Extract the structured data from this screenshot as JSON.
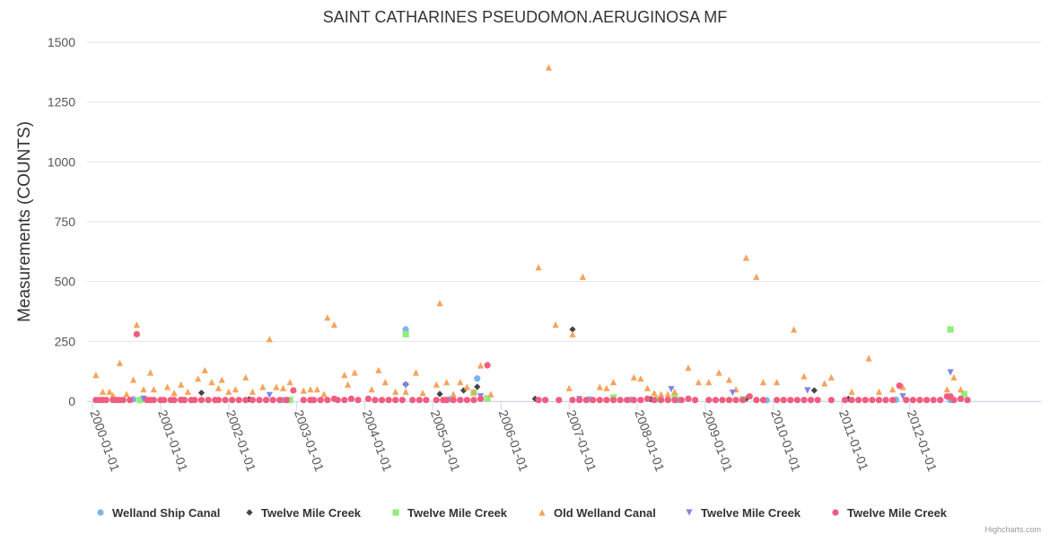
{
  "chart_data": {
    "type": "scatter",
    "title": "SAINT CATHARINES PSEUDOMON.AERUGINOSA MF",
    "xlabel": "",
    "ylabel": "Measurements (COUNTS)",
    "ylim": [
      0,
      1500
    ],
    "yticks": [
      0,
      250,
      500,
      750,
      1000,
      1250,
      1500
    ],
    "xlim": [
      1999.92,
      2013.93
    ],
    "xtick_values": [
      2000,
      2001,
      2002,
      2003,
      2004,
      2005,
      2006,
      2007,
      2008,
      2009,
      2010,
      2011,
      2012
    ],
    "xtick_labels": [
      "2000-01-01",
      "2001-01-01",
      "2002-01-01",
      "2003-01-01",
      "2004-01-01",
      "2005-01-01",
      "2006-01-01",
      "2007-01-01",
      "2008-01-01",
      "2009-01-01",
      "2010-01-01",
      "2011-01-01",
      "2012-01-01"
    ],
    "grid": "y",
    "legend_position": "bottom",
    "series": [
      {
        "name": "Welland Ship Canal",
        "color": "#7cb5ec",
        "marker": "circle",
        "x": [
          2000.6,
          2001.3,
          2002.8,
          2004.6,
          2005.25,
          2005.65,
          2007.3,
          2007.9,
          2008.6,
          2009.9,
          2011.8,
          2012.6
        ],
        "y": [
          8,
          6,
          5,
          300,
          8,
          95,
          8,
          6,
          5,
          4,
          6,
          5
        ]
      },
      {
        "name": "Twelve Mile Creek",
        "color": "#434348",
        "marker": "diamond",
        "x": [
          2001.6,
          2002.3,
          2004.6,
          2005.1,
          2005.45,
          2005.65,
          2006.5,
          2007.05,
          2008.2,
          2009.6,
          2010.6,
          2011.1
        ],
        "y": [
          35,
          8,
          70,
          30,
          45,
          60,
          10,
          300,
          8,
          10,
          45,
          10
        ]
      },
      {
        "name": "Twelve Mile Creek",
        "color": "#90ed7d",
        "marker": "square",
        "x": [
          2000.7,
          2002.9,
          2004.6,
          2005.6,
          2005.8,
          2007.65,
          2008.3,
          2008.55,
          2009.55,
          2012.6,
          2012.8
        ],
        "y": [
          5,
          5,
          280,
          35,
          12,
          15,
          8,
          20,
          8,
          300,
          30
        ]
      },
      {
        "name": "Old Welland Canal",
        "color": "#f7a35c",
        "marker": "triangle",
        "x": [
          2000.05,
          2000.15,
          2000.25,
          2000.3,
          2000.4,
          2000.5,
          2000.6,
          2000.65,
          2000.75,
          2000.85,
          2000.9,
          2001.1,
          2001.2,
          2001.3,
          2001.4,
          2001.55,
          2001.65,
          2001.75,
          2001.85,
          2001.9,
          2002.0,
          2002.1,
          2002.25,
          2002.35,
          2002.5,
          2002.6,
          2002.7,
          2002.8,
          2002.9,
          2003.1,
          2003.2,
          2003.3,
          2003.4,
          2003.45,
          2003.55,
          2003.7,
          2003.75,
          2003.85,
          2004.1,
          2004.2,
          2004.3,
          2004.45,
          2004.6,
          2004.75,
          2004.85,
          2005.05,
          2005.1,
          2005.2,
          2005.3,
          2005.4,
          2005.5,
          2005.6,
          2005.7,
          2005.85,
          2006.55,
          2006.7,
          2006.8,
          2007.0,
          2007.05,
          2007.2,
          2007.45,
          2007.55,
          2007.65,
          2007.95,
          2008.05,
          2008.15,
          2008.25,
          2008.35,
          2008.45,
          2008.55,
          2008.75,
          2008.9,
          2009.05,
          2009.2,
          2009.35,
          2009.45,
          2009.6,
          2009.75,
          2009.85,
          2010.05,
          2010.3,
          2010.45,
          2010.75,
          2010.85,
          2011.15,
          2011.4,
          2011.55,
          2011.75,
          2011.9,
          2012.55,
          2012.65,
          2012.75
        ],
        "y": [
          110,
          40,
          40,
          25,
          160,
          30,
          90,
          320,
          50,
          120,
          50,
          60,
          35,
          70,
          40,
          95,
          130,
          80,
          55,
          90,
          40,
          50,
          100,
          40,
          60,
          260,
          60,
          55,
          80,
          45,
          50,
          50,
          30,
          350,
          320,
          110,
          70,
          120,
          50,
          130,
          80,
          40,
          40,
          120,
          35,
          70,
          410,
          80,
          30,
          80,
          60,
          40,
          150,
          30,
          560,
          1395,
          320,
          55,
          280,
          520,
          60,
          55,
          80,
          100,
          95,
          55,
          35,
          30,
          30,
          40,
          140,
          80,
          80,
          120,
          90,
          50,
          600,
          520,
          80,
          80,
          300,
          105,
          75,
          100,
          40,
          180,
          40,
          50,
          60,
          50,
          100,
          50
        ]
      },
      {
        "name": "Twelve Mile Creek",
        "color": "#8085e9",
        "marker": "triangle-down",
        "x": [
          2000.75,
          2002.6,
          2004.6,
          2005.7,
          2007.15,
          2008.5,
          2009.4,
          2010.5,
          2011.9,
          2012.6
        ],
        "y": [
          10,
          25,
          65,
          20,
          8,
          50,
          35,
          45,
          20,
          120
        ]
      },
      {
        "name": "Twelve Mile Creek",
        "color": "#f15c80",
        "marker": "circle",
        "x": [
          2000.05,
          2000.1,
          2000.15,
          2000.2,
          2000.3,
          2000.35,
          2000.4,
          2000.45,
          2000.55,
          2000.65,
          2000.8,
          2000.85,
          2000.9,
          2001.0,
          2001.05,
          2001.15,
          2001.2,
          2001.3,
          2001.35,
          2001.45,
          2001.5,
          2001.6,
          2001.7,
          2001.8,
          2001.85,
          2001.95,
          2002.05,
          2002.15,
          2002.25,
          2002.35,
          2002.45,
          2002.55,
          2002.65,
          2002.75,
          2002.85,
          2002.95,
          2003.1,
          2003.2,
          2003.25,
          2003.35,
          2003.45,
          2003.55,
          2003.6,
          2003.7,
          2003.8,
          2003.9,
          2004.05,
          2004.15,
          2004.25,
          2004.35,
          2004.45,
          2004.55,
          2004.7,
          2004.8,
          2004.9,
          2005.05,
          2005.15,
          2005.2,
          2005.3,
          2005.4,
          2005.5,
          2005.6,
          2005.7,
          2005.8,
          2006.55,
          2006.65,
          2006.85,
          2007.05,
          2007.15,
          2007.25,
          2007.35,
          2007.45,
          2007.55,
          2007.65,
          2007.75,
          2007.85,
          2007.95,
          2008.05,
          2008.15,
          2008.25,
          2008.35,
          2008.45,
          2008.55,
          2008.65,
          2008.75,
          2008.85,
          2009.05,
          2009.15,
          2009.25,
          2009.35,
          2009.45,
          2009.55,
          2009.65,
          2009.75,
          2009.85,
          2010.05,
          2010.15,
          2010.25,
          2010.35,
          2010.45,
          2010.55,
          2010.65,
          2010.85,
          2011.05,
          2011.15,
          2011.25,
          2011.35,
          2011.45,
          2011.55,
          2011.65,
          2011.75,
          2011.85,
          2011.95,
          2012.05,
          2012.15,
          2012.25,
          2012.35,
          2012.45,
          2012.55,
          2012.6,
          2012.65,
          2012.75,
          2012.85
        ],
        "y": [
          5,
          5,
          5,
          5,
          5,
          5,
          5,
          5,
          5,
          280,
          5,
          5,
          5,
          5,
          5,
          5,
          5,
          5,
          5,
          5,
          5,
          5,
          5,
          5,
          5,
          5,
          5,
          5,
          5,
          5,
          5,
          5,
          5,
          5,
          5,
          45,
          5,
          5,
          5,
          5,
          5,
          10,
          5,
          5,
          10,
          5,
          10,
          5,
          5,
          5,
          5,
          5,
          5,
          5,
          5,
          5,
          5,
          5,
          5,
          5,
          5,
          5,
          10,
          150,
          5,
          5,
          5,
          5,
          5,
          5,
          5,
          5,
          5,
          5,
          5,
          5,
          5,
          5,
          10,
          5,
          5,
          5,
          5,
          5,
          10,
          5,
          5,
          5,
          5,
          5,
          5,
          5,
          20,
          5,
          5,
          5,
          5,
          5,
          5,
          5,
          5,
          5,
          5,
          5,
          5,
          5,
          5,
          5,
          5,
          5,
          5,
          65,
          5,
          5,
          5,
          5,
          5,
          5,
          20,
          20,
          5,
          10,
          5
        ]
      }
    ],
    "credit": "Highcharts.com"
  }
}
